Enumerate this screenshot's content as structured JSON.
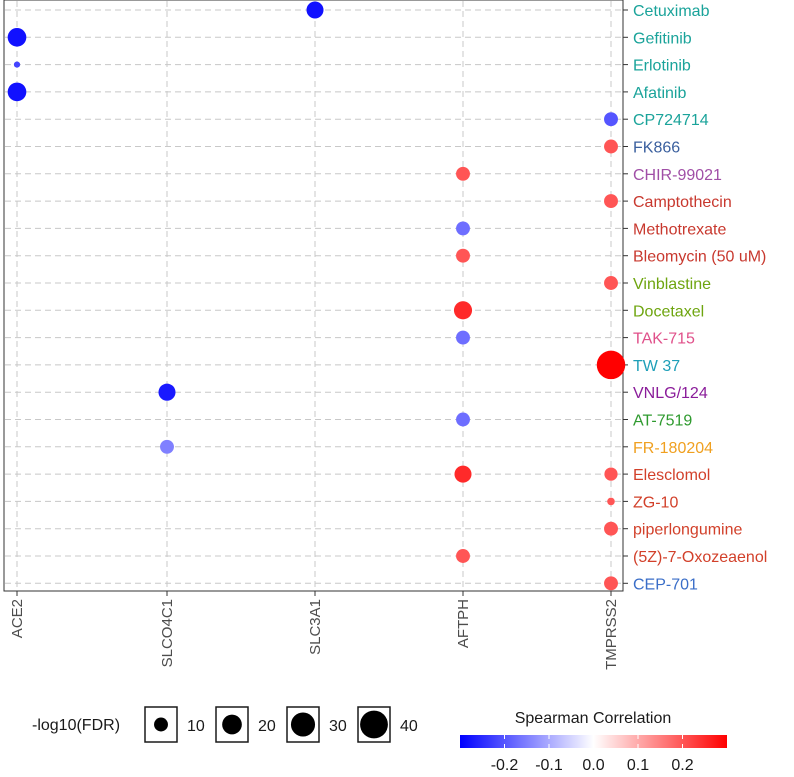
{
  "chart_data": {
    "type": "scatter",
    "title": "",
    "xlabel": "",
    "ylabel": "",
    "x_categories": [
      "ACE2",
      "SLCO4C1",
      "SLC3A1",
      "AFTPH",
      "TMPRSS2"
    ],
    "y_categories": [
      {
        "label": "Cetuximab",
        "color": "#1aa39a"
      },
      {
        "label": "Gefitinib",
        "color": "#1aa39a"
      },
      {
        "label": "Erlotinib",
        "color": "#1aa39a"
      },
      {
        "label": "Afatinib",
        "color": "#1aa39a"
      },
      {
        "label": "CP724714",
        "color": "#1aa39a"
      },
      {
        "label": "FK866",
        "color": "#3a5f9e"
      },
      {
        "label": "CHIR-99021",
        "color": "#a04ea6"
      },
      {
        "label": "Camptothecin",
        "color": "#c8382e"
      },
      {
        "label": "Methotrexate",
        "color": "#c8382e"
      },
      {
        "label": "Bleomycin (50 uM)",
        "color": "#c8382e"
      },
      {
        "label": "Vinblastine",
        "color": "#6ea50f"
      },
      {
        "label": "Docetaxel",
        "color": "#6ea50f"
      },
      {
        "label": "TAK-715",
        "color": "#e0508a"
      },
      {
        "label": "TW 37",
        "color": "#1e9fb8"
      },
      {
        "label": "VNLG/124",
        "color": "#8a1c9a"
      },
      {
        "label": "AT-7519",
        "color": "#2e9a2e"
      },
      {
        "label": "FR-180204",
        "color": "#f0a020"
      },
      {
        "label": "Elesclomol",
        "color": "#d2402a"
      },
      {
        "label": "ZG-10",
        "color": "#d2402a"
      },
      {
        "label": "piperlongumine",
        "color": "#d2402a"
      },
      {
        "label": "(5Z)-7-Oxozeaenol",
        "color": "#d2402a"
      },
      {
        "label": "CEP-701",
        "color": "#3a6ec8"
      }
    ],
    "points": [
      {
        "gene": "SLC3A1",
        "drug": "Cetuximab",
        "rho": -0.28,
        "neglog10FDR": 15
      },
      {
        "gene": "ACE2",
        "drug": "Gefitinib",
        "rho": -0.28,
        "neglog10FDR": 18
      },
      {
        "gene": "ACE2",
        "drug": "Erlotinib",
        "rho": -0.22,
        "neglog10FDR": 2
      },
      {
        "gene": "ACE2",
        "drug": "Afatinib",
        "rho": -0.28,
        "neglog10FDR": 18
      },
      {
        "gene": "TMPRSS2",
        "drug": "CP724714",
        "rho": -0.2,
        "neglog10FDR": 10
      },
      {
        "gene": "TMPRSS2",
        "drug": "FK866",
        "rho": 0.2,
        "neglog10FDR": 10
      },
      {
        "gene": "AFTPH",
        "drug": "CHIR-99021",
        "rho": 0.2,
        "neglog10FDR": 10
      },
      {
        "gene": "TMPRSS2",
        "drug": "Camptothecin",
        "rho": 0.2,
        "neglog10FDR": 10
      },
      {
        "gene": "AFTPH",
        "drug": "Methotrexate",
        "rho": -0.17,
        "neglog10FDR": 10
      },
      {
        "gene": "AFTPH",
        "drug": "Bleomycin (50 uM)",
        "rho": 0.2,
        "neglog10FDR": 10
      },
      {
        "gene": "TMPRSS2",
        "drug": "Vinblastine",
        "rho": 0.2,
        "neglog10FDR": 10
      },
      {
        "gene": "AFTPH",
        "drug": "Docetaxel",
        "rho": 0.25,
        "neglog10FDR": 17
      },
      {
        "gene": "AFTPH",
        "drug": "TAK-715",
        "rho": -0.17,
        "neglog10FDR": 10
      },
      {
        "gene": "TMPRSS2",
        "drug": "TW 37",
        "rho": 0.3,
        "neglog10FDR": 42
      },
      {
        "gene": "SLCO4C1",
        "drug": "VNLG/124",
        "rho": -0.27,
        "neglog10FDR": 15
      },
      {
        "gene": "AFTPH",
        "drug": "AT-7519",
        "rho": -0.17,
        "neglog10FDR": 10
      },
      {
        "gene": "SLCO4C1",
        "drug": "FR-180204",
        "rho": -0.15,
        "neglog10FDR": 10
      },
      {
        "gene": "AFTPH",
        "drug": "Elesclomol",
        "rho": 0.25,
        "neglog10FDR": 15
      },
      {
        "gene": "TMPRSS2",
        "drug": "Elesclomol",
        "rho": 0.2,
        "neglog10FDR": 9
      },
      {
        "gene": "TMPRSS2",
        "drug": "ZG-10",
        "rho": 0.2,
        "neglog10FDR": 3
      },
      {
        "gene": "TMPRSS2",
        "drug": "piperlongumine",
        "rho": 0.2,
        "neglog10FDR": 10
      },
      {
        "gene": "AFTPH",
        "drug": "(5Z)-7-Oxozeaenol",
        "rho": 0.2,
        "neglog10FDR": 10
      },
      {
        "gene": "TMPRSS2",
        "drug": "CEP-701",
        "rho": 0.2,
        "neglog10FDR": 10
      }
    ],
    "size_legend": {
      "title": "-log10(FDR)",
      "breaks": [
        10,
        20,
        30,
        40
      ]
    },
    "color_legend": {
      "title": "Spearman Correlation",
      "limits": [
        -0.3,
        0.3
      ],
      "breaks": [
        -0.2,
        -0.1,
        0.0,
        0.1,
        0.2
      ],
      "break_labels": [
        "-0.2",
        "-0.1",
        "0.0",
        "0.1",
        "0.2"
      ],
      "low_color": "#0000ff",
      "mid_color": "#ffffff",
      "high_color": "#ff0000"
    },
    "grid": true,
    "ylabel_position": "right",
    "legend_position": "bottom"
  }
}
